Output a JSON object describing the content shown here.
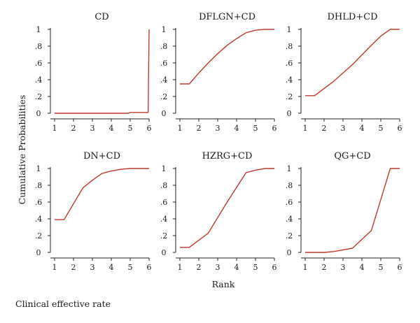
{
  "figure": {
    "caption": "Clinical effective rate",
    "ylabel": "Cumulative Probabilities",
    "xlabel": "Rank",
    "line_color": "#c0392b",
    "axis_color": "#222222"
  },
  "chart_data": [
    {
      "type": "line",
      "title": "CD",
      "x": [
        1,
        1.5,
        2.5,
        3.5,
        4.5,
        4.9,
        5.0,
        5.5,
        5.95,
        6.0
      ],
      "values": [
        0.0,
        0.0,
        0.0,
        0.0,
        0.0,
        0.0,
        0.01,
        0.01,
        0.01,
        1.0
      ],
      "xlim": [
        1,
        6
      ],
      "ylim": [
        0,
        1
      ],
      "xticks": [
        "1",
        "2",
        "3",
        "4",
        "5",
        "6"
      ],
      "yticks": [
        "0",
        ".2",
        ".4",
        ".6",
        ".8",
        "1"
      ]
    },
    {
      "type": "line",
      "title": "DFLGN+CD",
      "x": [
        1,
        1.5,
        2.0,
        2.5,
        3.0,
        3.5,
        4.0,
        4.5,
        5.0,
        5.5,
        6.0
      ],
      "values": [
        0.35,
        0.35,
        0.48,
        0.6,
        0.71,
        0.81,
        0.89,
        0.96,
        0.99,
        1.0,
        1.0
      ],
      "xlim": [
        1,
        6
      ],
      "ylim": [
        0,
        1
      ],
      "xticks": [
        "1",
        "2",
        "3",
        "4",
        "5",
        "6"
      ],
      "yticks": [
        "0",
        ".2",
        ".4",
        ".6",
        ".8",
        "1"
      ]
    },
    {
      "type": "line",
      "title": "DHLD+CD",
      "x": [
        1,
        1.5,
        2.5,
        3.5,
        4.5,
        5.0,
        5.5,
        6.0
      ],
      "values": [
        0.21,
        0.21,
        0.38,
        0.58,
        0.81,
        0.92,
        1.0,
        1.0
      ],
      "xlim": [
        1,
        6
      ],
      "ylim": [
        0,
        1
      ],
      "xticks": [
        "1",
        "2",
        "3",
        "4",
        "5",
        "6"
      ],
      "yticks": [
        "0",
        ".2",
        ".4",
        ".6",
        ".8",
        "1"
      ]
    },
    {
      "type": "line",
      "title": "DN+CD",
      "x": [
        1,
        1.5,
        2.5,
        3.0,
        3.5,
        4.0,
        4.5,
        5.0,
        5.5,
        6.0
      ],
      "values": [
        0.39,
        0.39,
        0.77,
        0.86,
        0.94,
        0.97,
        0.99,
        1.0,
        1.0,
        1.0
      ],
      "xlim": [
        1,
        6
      ],
      "ylim": [
        0,
        1
      ],
      "xticks": [
        "1",
        "2",
        "3",
        "4",
        "5",
        "6"
      ],
      "yticks": [
        "0",
        ".2",
        ".4",
        ".6",
        ".8",
        "1"
      ]
    },
    {
      "type": "line",
      "title": "HZRG+CD",
      "x": [
        1,
        1.5,
        2.5,
        3.5,
        4.5,
        5.0,
        5.5,
        6.0
      ],
      "values": [
        0.06,
        0.06,
        0.23,
        0.6,
        0.95,
        0.98,
        1.0,
        1.0
      ],
      "xlim": [
        1,
        6
      ],
      "ylim": [
        0,
        1
      ],
      "xticks": [
        "1",
        "2",
        "3",
        "4",
        "5",
        "6"
      ],
      "yticks": [
        "0",
        ".2",
        ".4",
        ".6",
        ".8",
        "1"
      ]
    },
    {
      "type": "line",
      "title": "QG+CD",
      "x": [
        1,
        1.5,
        2.0,
        2.5,
        3.0,
        3.5,
        4.5,
        5.5,
        6.0
      ],
      "values": [
        0.0,
        0.0,
        0.0,
        0.01,
        0.03,
        0.05,
        0.26,
        1.0,
        1.0
      ],
      "xlim": [
        1,
        6
      ],
      "ylim": [
        0,
        1
      ],
      "xticks": [
        "1",
        "2",
        "3",
        "4",
        "5",
        "6"
      ],
      "yticks": [
        "0",
        ".2",
        ".4",
        ".6",
        ".8",
        "1"
      ]
    }
  ]
}
